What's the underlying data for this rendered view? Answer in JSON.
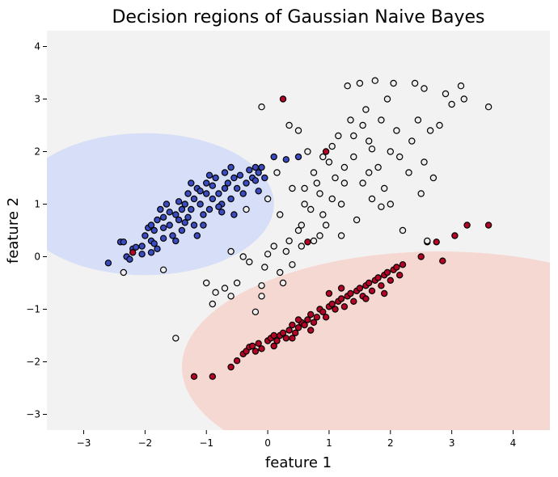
{
  "chart_data": {
    "type": "scatter",
    "title": "Decision regions of Gaussian Naive Bayes",
    "xlabel": "feature 1",
    "ylabel": "feature 2",
    "xlim": [
      -3.6,
      4.6
    ],
    "ylim": [
      -3.3,
      4.3
    ],
    "xticks": [
      -3,
      -2,
      -1,
      0,
      1,
      2,
      3,
      4
    ],
    "yticks": [
      -3,
      -2,
      -1,
      0,
      1,
      2,
      3,
      4
    ],
    "grid": false,
    "legend": "none",
    "colors": {
      "background_region": "#f2f2f2",
      "blue_region": "#d6def8",
      "red_region": "#f6d8d2",
      "blue_points": "#3b4cc0",
      "white_points": "#eeeeee",
      "red_points": "#b40426",
      "point_edge": "#000000"
    },
    "regions": [
      {
        "class": "blue",
        "center": [
          -2.0,
          1.0
        ],
        "radii": [
          2.1,
          1.35
        ]
      },
      {
        "class": "red",
        "center": [
          2.8,
          -2.1
        ],
        "radii": [
          4.2,
          2.2
        ]
      }
    ],
    "series": [
      {
        "class": "blue",
        "points": [
          [
            -2.6,
            -0.12
          ],
          [
            -2.4,
            0.28
          ],
          [
            -2.35,
            0.28
          ],
          [
            -2.3,
            0.0
          ],
          [
            -2.25,
            -0.05
          ],
          [
            -2.2,
            0.15
          ],
          [
            -2.15,
            0.18
          ],
          [
            -2.05,
            0.2
          ],
          [
            -2.0,
            0.4
          ],
          [
            -1.95,
            0.55
          ],
          [
            -1.9,
            0.6
          ],
          [
            -1.9,
            0.3
          ],
          [
            -1.85,
            0.25
          ],
          [
            -1.85,
            0.5
          ],
          [
            -1.8,
            0.7
          ],
          [
            -1.8,
            0.15
          ],
          [
            -1.75,
            0.9
          ],
          [
            -1.7,
            0.75
          ],
          [
            -1.7,
            0.35
          ],
          [
            -1.65,
            1.0
          ],
          [
            -1.6,
            0.6
          ],
          [
            -1.55,
            0.4
          ],
          [
            -1.5,
            0.8
          ],
          [
            -1.45,
            0.7
          ],
          [
            -1.4,
            0.9
          ],
          [
            -1.4,
            0.5
          ],
          [
            -1.35,
            1.0
          ],
          [
            -1.3,
            0.75
          ],
          [
            -1.25,
            0.9
          ],
          [
            -1.2,
            1.1
          ],
          [
            -1.2,
            0.6
          ],
          [
            -1.15,
            1.3
          ],
          [
            -1.1,
            1.0
          ],
          [
            -1.05,
            0.8
          ],
          [
            -1.0,
            1.2
          ],
          [
            -1.0,
            1.4
          ],
          [
            -0.95,
            0.9
          ],
          [
            -0.9,
            1.1
          ],
          [
            -0.9,
            1.35
          ],
          [
            -0.85,
            1.5
          ],
          [
            -0.8,
            1.2
          ],
          [
            -0.75,
            1.0
          ],
          [
            -0.7,
            1.3
          ],
          [
            -0.7,
            1.6
          ],
          [
            -0.65,
            1.4
          ],
          [
            -0.6,
            1.1
          ],
          [
            -0.55,
            1.5
          ],
          [
            -0.5,
            1.3
          ],
          [
            -0.45,
            1.55
          ],
          [
            -0.4,
            1.2
          ],
          [
            -0.35,
            1.4
          ],
          [
            -0.3,
            1.65
          ],
          [
            -0.25,
            1.5
          ],
          [
            -0.2,
            1.7
          ],
          [
            -0.15,
            1.6
          ],
          [
            -0.1,
            1.7
          ],
          [
            -1.3,
            1.2
          ],
          [
            -1.25,
            1.4
          ],
          [
            -0.95,
            1.55
          ],
          [
            -0.6,
            1.7
          ],
          [
            -0.8,
            0.95
          ],
          [
            -0.55,
            0.8
          ],
          [
            -1.6,
            0.85
          ],
          [
            -1.45,
            1.05
          ],
          [
            -1.1,
            1.25
          ],
          [
            -0.2,
            1.45
          ],
          [
            -0.15,
            1.25
          ],
          [
            -0.05,
            1.5
          ],
          [
            0.1,
            1.9
          ],
          [
            0.3,
            1.85
          ],
          [
            0.5,
            1.9
          ],
          [
            -1.7,
            0.55
          ],
          [
            -1.35,
            0.65
          ],
          [
            -1.05,
            0.6
          ],
          [
            -0.75,
            0.85
          ],
          [
            -2.05,
            0.05
          ],
          [
            -1.9,
            0.08
          ],
          [
            -1.5,
            0.3
          ],
          [
            -1.15,
            0.4
          ]
        ]
      },
      {
        "class": "red",
        "points": [
          [
            -1.2,
            -2.28
          ],
          [
            -0.9,
            -2.28
          ],
          [
            -0.6,
            -2.1
          ],
          [
            -0.5,
            -1.98
          ],
          [
            -0.4,
            -1.85
          ],
          [
            -0.35,
            -1.8
          ],
          [
            -0.3,
            -1.72
          ],
          [
            -0.25,
            -1.7
          ],
          [
            -0.2,
            -1.8
          ],
          [
            -0.15,
            -1.65
          ],
          [
            -0.1,
            -1.75
          ],
          [
            0.0,
            -1.6
          ],
          [
            0.05,
            -1.55
          ],
          [
            0.1,
            -1.5
          ],
          [
            0.15,
            -1.6
          ],
          [
            0.2,
            -1.5
          ],
          [
            0.25,
            -1.45
          ],
          [
            0.3,
            -1.55
          ],
          [
            0.35,
            -1.4
          ],
          [
            0.4,
            -1.3
          ],
          [
            0.45,
            -1.45
          ],
          [
            0.5,
            -1.35
          ],
          [
            0.55,
            -1.25
          ],
          [
            0.6,
            -1.3
          ],
          [
            0.65,
            -1.2
          ],
          [
            0.7,
            -1.1
          ],
          [
            0.75,
            -1.25
          ],
          [
            0.8,
            -1.15
          ],
          [
            0.85,
            -1.0
          ],
          [
            0.9,
            -1.05
          ],
          [
            0.95,
            -1.15
          ],
          [
            1.0,
            -0.95
          ],
          [
            1.05,
            -0.9
          ],
          [
            1.1,
            -1.0
          ],
          [
            1.15,
            -0.85
          ],
          [
            1.2,
            -0.8
          ],
          [
            1.25,
            -0.95
          ],
          [
            1.3,
            -0.75
          ],
          [
            1.35,
            -0.7
          ],
          [
            1.4,
            -0.85
          ],
          [
            1.45,
            -0.65
          ],
          [
            1.5,
            -0.6
          ],
          [
            1.55,
            -0.75
          ],
          [
            1.6,
            -0.55
          ],
          [
            1.65,
            -0.5
          ],
          [
            1.7,
            -0.65
          ],
          [
            1.75,
            -0.45
          ],
          [
            1.8,
            -0.4
          ],
          [
            1.85,
            -0.55
          ],
          [
            1.9,
            -0.35
          ],
          [
            1.95,
            -0.3
          ],
          [
            2.0,
            -0.45
          ],
          [
            2.05,
            -0.25
          ],
          [
            2.1,
            -0.2
          ],
          [
            2.15,
            -0.35
          ],
          [
            2.2,
            -0.15
          ],
          [
            2.5,
            0.0
          ],
          [
            2.6,
            0.28
          ],
          [
            2.75,
            0.28
          ],
          [
            2.85,
            -0.08
          ],
          [
            3.05,
            0.4
          ],
          [
            3.25,
            0.6
          ],
          [
            3.6,
            0.6
          ],
          [
            0.25,
            3.0
          ],
          [
            0.65,
            0.28
          ],
          [
            -2.2,
            0.08
          ],
          [
            0.95,
            2.0
          ],
          [
            1.2,
            -0.6
          ],
          [
            1.0,
            -0.7
          ],
          [
            0.7,
            -1.4
          ],
          [
            0.4,
            -1.55
          ],
          [
            0.1,
            -1.7
          ],
          [
            1.6,
            -0.8
          ],
          [
            1.9,
            -0.7
          ],
          [
            0.5,
            -1.2
          ]
        ]
      },
      {
        "class": "white",
        "points": [
          [
            -2.35,
            -0.3
          ],
          [
            -1.7,
            -0.25
          ],
          [
            -1.5,
            -1.55
          ],
          [
            -0.9,
            -0.9
          ],
          [
            -0.85,
            -0.68
          ],
          [
            -0.7,
            -0.6
          ],
          [
            -0.6,
            0.1
          ],
          [
            -0.5,
            -0.5
          ],
          [
            -0.4,
            0.0
          ],
          [
            -0.3,
            -0.1
          ],
          [
            -0.2,
            -1.05
          ],
          [
            -0.1,
            -0.55
          ],
          [
            -0.1,
            -0.75
          ],
          [
            -0.05,
            -0.2
          ],
          [
            0.0,
            0.05
          ],
          [
            0.1,
            0.2
          ],
          [
            0.2,
            -0.3
          ],
          [
            0.3,
            0.1
          ],
          [
            0.35,
            0.3
          ],
          [
            0.4,
            1.3
          ],
          [
            0.5,
            0.5
          ],
          [
            0.55,
            0.2
          ],
          [
            0.6,
            1.0
          ],
          [
            0.7,
            0.9
          ],
          [
            0.75,
            1.6
          ],
          [
            0.8,
            1.4
          ],
          [
            0.85,
            1.2
          ],
          [
            0.9,
            0.8
          ],
          [
            0.95,
            0.6
          ],
          [
            1.0,
            1.8
          ],
          [
            1.05,
            2.1
          ],
          [
            1.1,
            1.5
          ],
          [
            1.15,
            2.3
          ],
          [
            1.2,
            1.0
          ],
          [
            1.25,
            1.7
          ],
          [
            1.3,
            3.25
          ],
          [
            1.35,
            2.6
          ],
          [
            1.4,
            1.9
          ],
          [
            1.45,
            0.7
          ],
          [
            1.5,
            3.3
          ],
          [
            1.55,
            1.4
          ],
          [
            1.6,
            2.8
          ],
          [
            1.65,
            2.2
          ],
          [
            1.7,
            1.1
          ],
          [
            1.75,
            3.35
          ],
          [
            1.8,
            1.7
          ],
          [
            1.85,
            2.6
          ],
          [
            1.9,
            1.3
          ],
          [
            1.95,
            3.0
          ],
          [
            2.0,
            2.0
          ],
          [
            2.05,
            3.3
          ],
          [
            2.1,
            2.4
          ],
          [
            2.2,
            0.5
          ],
          [
            2.3,
            1.6
          ],
          [
            2.4,
            3.3
          ],
          [
            2.45,
            2.6
          ],
          [
            2.5,
            1.2
          ],
          [
            2.55,
            3.2
          ],
          [
            2.6,
            0.3
          ],
          [
            2.65,
            2.4
          ],
          [
            2.7,
            1.5
          ],
          [
            2.8,
            2.5
          ],
          [
            2.9,
            3.1
          ],
          [
            3.0,
            2.9
          ],
          [
            3.15,
            3.25
          ],
          [
            3.2,
            3.0
          ],
          [
            3.6,
            2.85
          ],
          [
            -0.1,
            2.85
          ],
          [
            0.35,
            2.5
          ],
          [
            0.5,
            2.4
          ],
          [
            0.65,
            2.0
          ],
          [
            0.2,
            0.8
          ],
          [
            0.0,
            1.1
          ],
          [
            0.25,
            -0.5
          ],
          [
            0.4,
            -0.15
          ],
          [
            0.55,
            0.6
          ],
          [
            0.6,
            1.3
          ],
          [
            0.75,
            0.3
          ],
          [
            0.15,
            1.6
          ],
          [
            0.9,
            1.9
          ],
          [
            1.05,
            1.1
          ],
          [
            1.25,
            1.4
          ],
          [
            1.4,
            2.3
          ],
          [
            1.65,
            1.6
          ],
          [
            1.85,
            0.95
          ],
          [
            2.15,
            1.9
          ],
          [
            2.35,
            2.2
          ],
          [
            2.55,
            1.8
          ],
          [
            0.85,
            0.4
          ],
          [
            1.2,
            0.4
          ],
          [
            1.55,
            2.5
          ],
          [
            1.7,
            2.05
          ],
          [
            2.0,
            1.0
          ],
          [
            -0.35,
            0.9
          ],
          [
            -1.0,
            -0.5
          ],
          [
            -0.6,
            -0.75
          ]
        ]
      }
    ]
  }
}
